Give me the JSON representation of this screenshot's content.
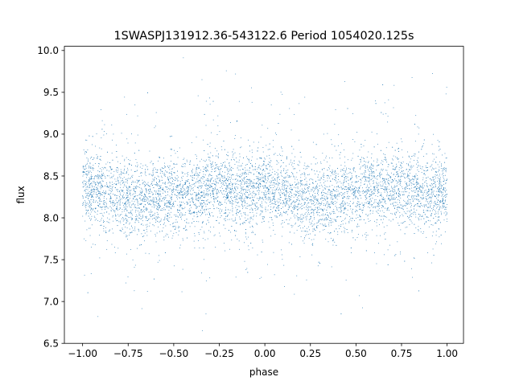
{
  "chart_data": {
    "type": "scatter",
    "title": "1SWASPJ131912.36-543122.6 Period 1054020.125s",
    "xlabel": "phase",
    "ylabel": "flux",
    "xlim": [
      -1.1,
      1.09
    ],
    "ylim": [
      6.5,
      10.05
    ],
    "xticks": [
      -1.0,
      -0.75,
      -0.5,
      -0.25,
      0.0,
      0.25,
      0.5,
      0.75,
      1.0
    ],
    "xtick_labels": [
      "−1.00",
      "−0.75",
      "−0.50",
      "−0.25",
      "0.00",
      "0.25",
      "0.50",
      "0.75",
      "1.00"
    ],
    "yticks": [
      6.5,
      7.0,
      7.5,
      8.0,
      8.5,
      9.0,
      9.5,
      10.0
    ],
    "ytick_labels": [
      "6.5",
      "7.0",
      "7.5",
      "8.0",
      "8.5",
      "9.0",
      "9.5",
      "10.0"
    ],
    "grid": false,
    "legend": "none",
    "marker_color": "#1f77b4",
    "point_count": 7000,
    "description_of_distribution": "phase-folded light curve, dense band between flux 7.7 and 8.8 centered near 8.3, sparse outliers from 6.6 to 9.9, phase range -1.0 to 1.0",
    "series": [
      {
        "x": [
          -1.0,
          -0.9,
          -0.8,
          -0.7,
          -0.6,
          -0.5,
          -0.4,
          -0.3,
          -0.2,
          -0.1,
          0.0,
          0.1,
          0.2,
          0.3,
          0.4,
          0.5,
          0.6,
          0.7,
          0.8,
          0.9,
          1.0
        ],
        "y_center": [
          8.35,
          8.35,
          8.25,
          8.2,
          8.25,
          8.25,
          8.3,
          8.35,
          8.35,
          8.3,
          8.35,
          8.3,
          8.2,
          8.2,
          8.25,
          8.3,
          8.3,
          8.35,
          8.35,
          8.3,
          8.35
        ]
      }
    ]
  }
}
